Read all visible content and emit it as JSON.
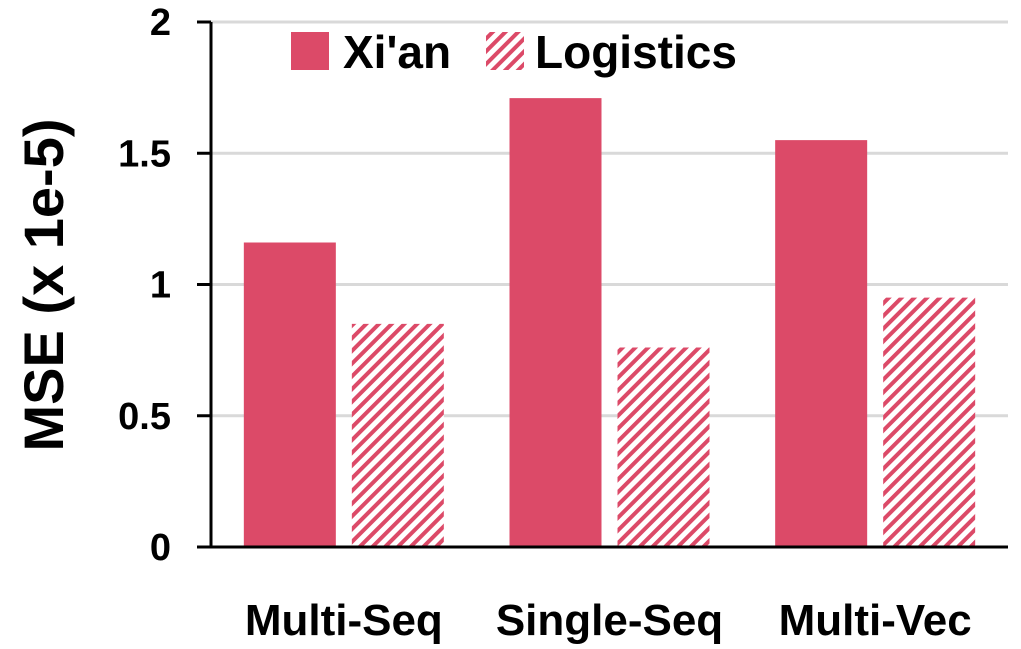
{
  "chart_data": {
    "type": "bar",
    "categories": [
      "Multi-Seq",
      "Single-Seq",
      "Multi-Vec"
    ],
    "series": [
      {
        "name": "Xi'an",
        "values": [
          1.16,
          1.71,
          1.55
        ],
        "fill": "solid"
      },
      {
        "name": "Logistics",
        "values": [
          0.85,
          0.76,
          0.95
        ],
        "fill": "hatched"
      }
    ],
    "ylabel": "MSE (x 1e-5)",
    "xlabel": "",
    "ylim": [
      0,
      2
    ],
    "yticks": [
      "0",
      "0.5",
      "1",
      "1.5",
      "2"
    ],
    "grid": true,
    "legend_position": "top"
  },
  "colors": {
    "bar": "#dc4a68",
    "grid": "#d9d9d9",
    "axis": "#000000"
  }
}
